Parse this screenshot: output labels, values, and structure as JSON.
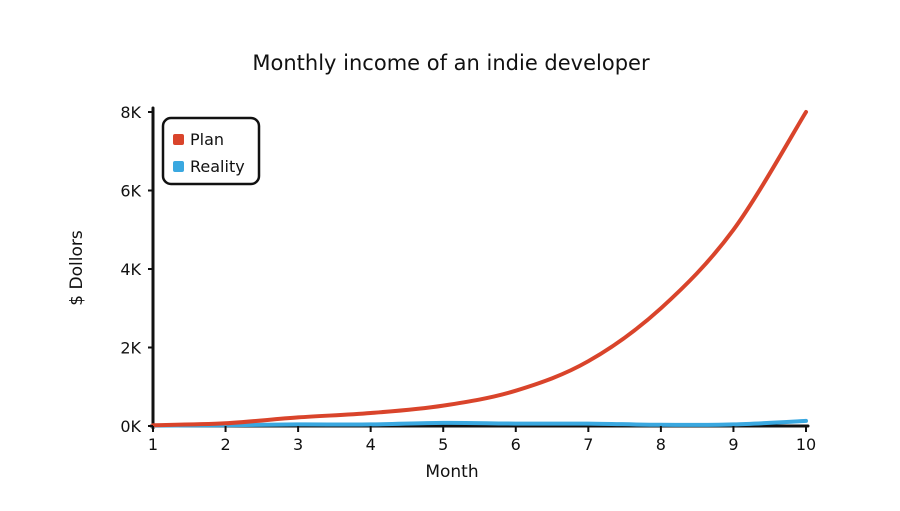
{
  "chart_data": {
    "type": "line",
    "title": "Monthly income of an indie developer",
    "xlabel": "Month",
    "ylabel": "$ Dollors",
    "x": [
      1,
      2,
      3,
      4,
      5,
      6,
      7,
      8,
      9,
      10
    ],
    "xticks": [
      "1",
      "2",
      "3",
      "4",
      "5",
      "6",
      "7",
      "8",
      "9",
      "10"
    ],
    "yticks": [
      {
        "value": 0,
        "label": "0K"
      },
      {
        "value": 2000,
        "label": "2K"
      },
      {
        "value": 4000,
        "label": "4K"
      },
      {
        "value": 6000,
        "label": "6K"
      },
      {
        "value": 8000,
        "label": "8K"
      }
    ],
    "xlim": [
      1,
      10
    ],
    "ylim": [
      0,
      8000
    ],
    "grid": false,
    "legend": "top-left",
    "series": [
      {
        "name": "Plan",
        "color": "#d9442b",
        "values": [
          20,
          70,
          220,
          330,
          520,
          900,
          1650,
          3000,
          5000,
          8000
        ]
      },
      {
        "name": "Reality",
        "color": "#3aa8e0",
        "values": [
          10,
          20,
          40,
          40,
          80,
          60,
          60,
          30,
          40,
          130
        ]
      }
    ]
  }
}
